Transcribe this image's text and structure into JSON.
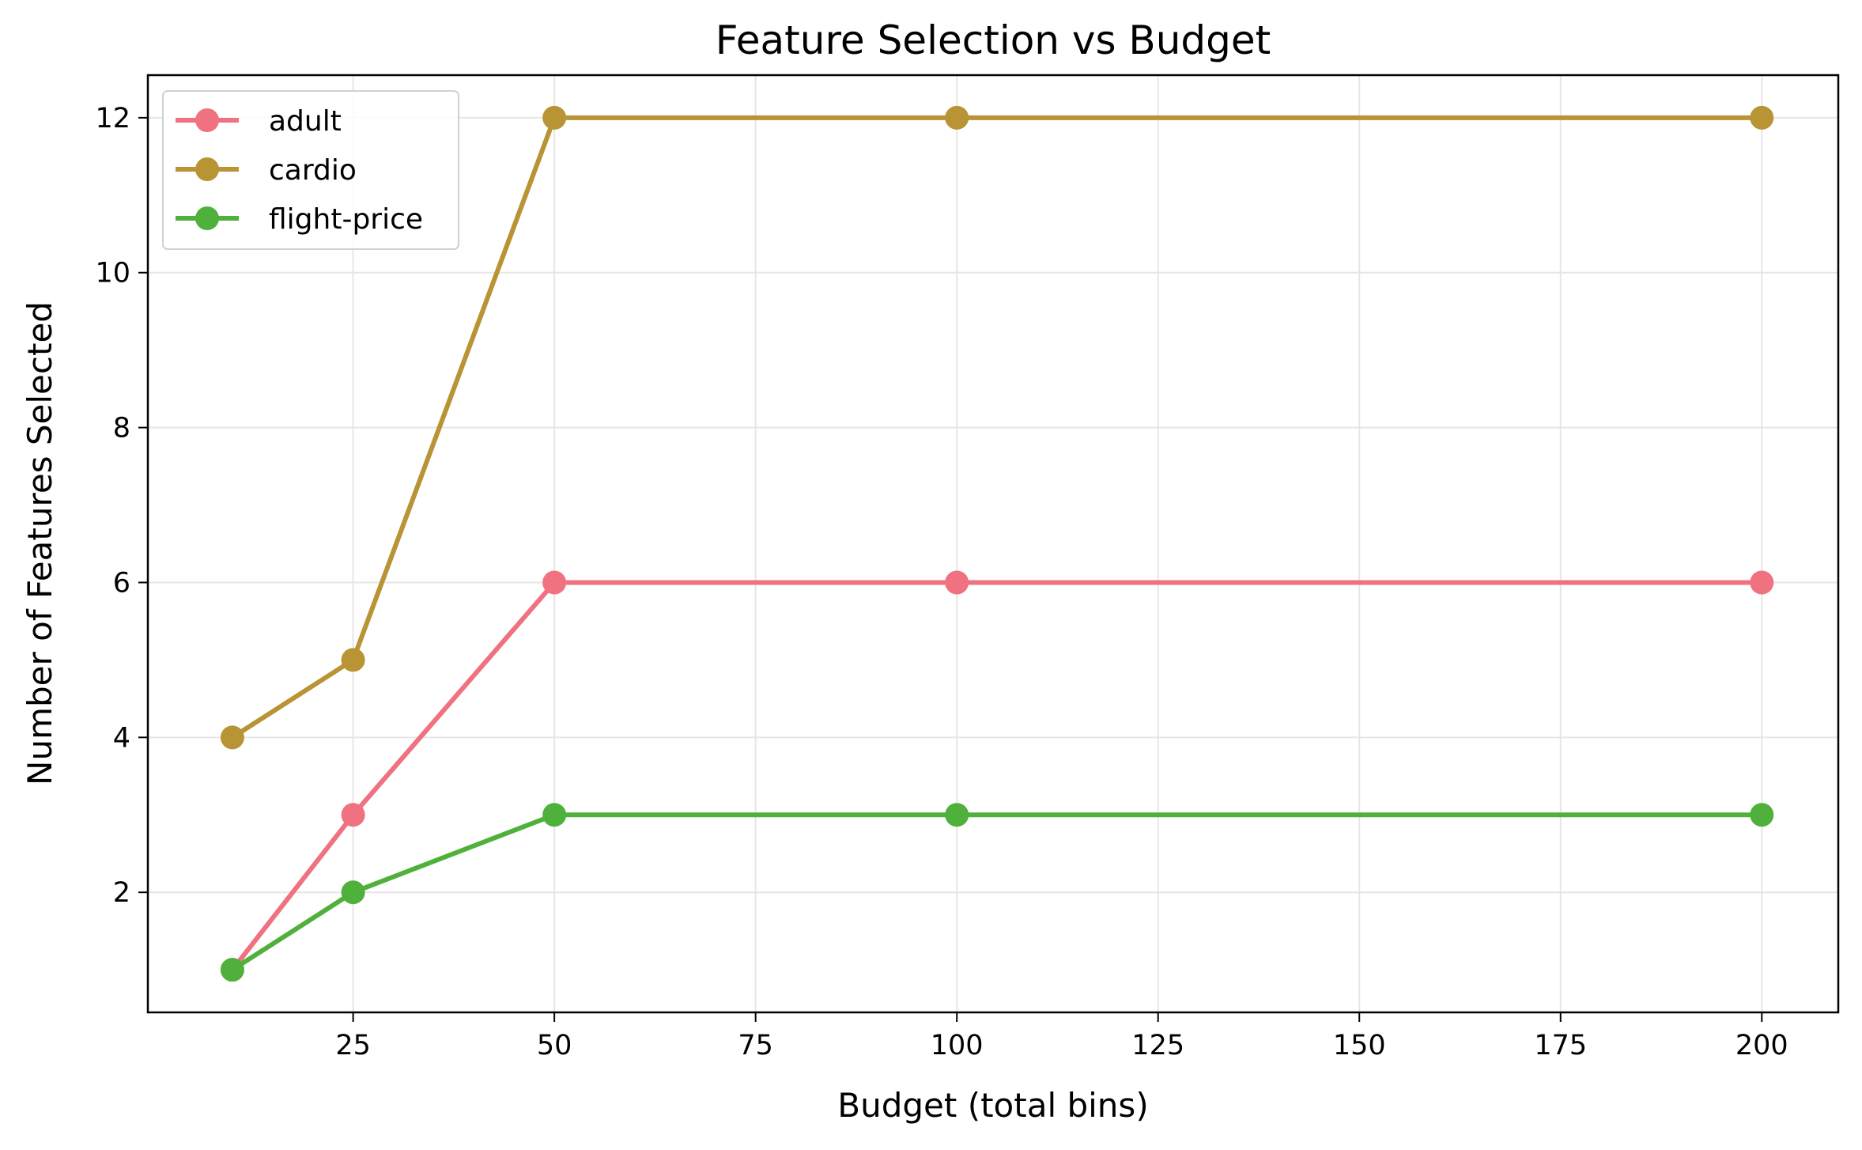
{
  "chart_data": {
    "type": "line",
    "title": "Feature Selection vs Budget",
    "xlabel": "Budget (total bins)",
    "ylabel": "Number of Features Selected",
    "x": [
      10,
      25,
      50,
      100,
      200
    ],
    "xlim": [
      -0.5,
      209.5
    ],
    "ylim": [
      0.45,
      12.55
    ],
    "xticks": [
      25,
      50,
      75,
      100,
      125,
      150,
      175,
      200
    ],
    "yticks": [
      2,
      4,
      6,
      8,
      10,
      12
    ],
    "grid": true,
    "legend_position": "top-left",
    "series": [
      {
        "name": "adult",
        "color": "#f0717f",
        "values": [
          1,
          3,
          6,
          6,
          6
        ]
      },
      {
        "name": "cardio",
        "color": "#b89434",
        "values": [
          4,
          5,
          12,
          12,
          12
        ]
      },
      {
        "name": "flight-price",
        "color": "#4fb13b",
        "values": [
          1,
          2,
          3,
          3,
          3
        ]
      }
    ]
  }
}
